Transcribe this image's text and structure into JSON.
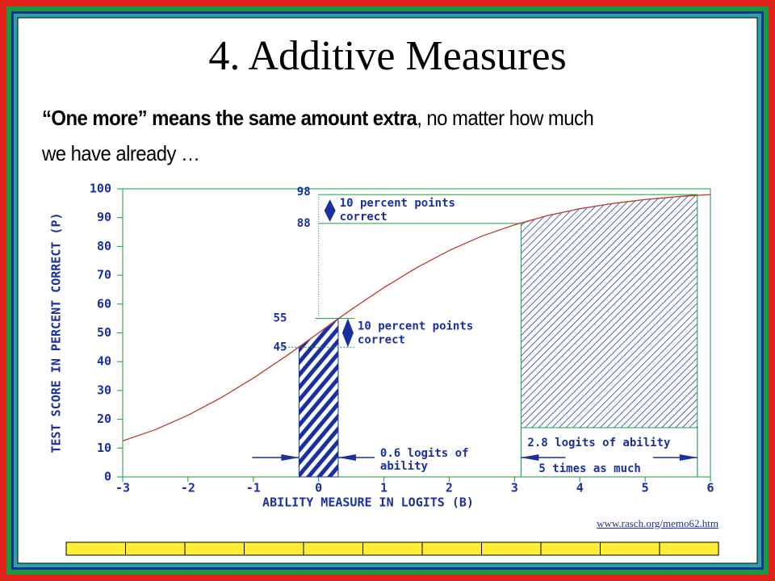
{
  "title": "4. Additive Measures",
  "subtitle": {
    "bold": "“One more” means the same amount extra",
    "rest": ", no matter how much we have already …"
  },
  "source": "www.rasch.org/memo62.htm",
  "chart_data": {
    "type": "line",
    "x_label": "ABILITY MEASURE IN LOGITS (B)",
    "y_label": "TEST SCORE IN PERCENT CORRECT (P)",
    "x": [
      -3,
      -2.5,
      -2,
      -1.5,
      -1,
      -0.5,
      0,
      0.5,
      1,
      1.5,
      2,
      2.5,
      3,
      3.5,
      4,
      4.5,
      5,
      5.5,
      6
    ],
    "series": [
      {
        "color": "#c0392b",
        "values": [
          12.5,
          16.4,
          21.4,
          27.4,
          34.3,
          41.9,
          50,
          58.1,
          65.7,
          72.6,
          78.6,
          83.6,
          87.5,
          90.7,
          93.1,
          94.9,
          96.3,
          97.3,
          98.0
        ]
      }
    ],
    "xlim": [
      -3,
      6
    ],
    "xticks": [
      -3,
      -2,
      -1,
      0,
      1,
      2,
      3,
      4,
      5,
      6
    ],
    "ylim": [
      0,
      100
    ],
    "yticks": [
      0,
      10,
      20,
      30,
      40,
      50,
      60,
      70,
      80,
      90,
      100
    ],
    "regions": [
      {
        "x": [
          -0.3,
          0.3
        ],
        "y": [
          45,
          55
        ],
        "note": [
          "10 percent points",
          "correct"
        ],
        "width_note": [
          "0.6 logits of",
          "ability"
        ]
      },
      {
        "x": [
          3.1,
          5.8
        ],
        "y": [
          88,
          98
        ],
        "note": [
          "10 percent points",
          "correct"
        ],
        "width_note": [
          "2.8 logits of ability",
          "5 times as much"
        ]
      }
    ]
  }
}
